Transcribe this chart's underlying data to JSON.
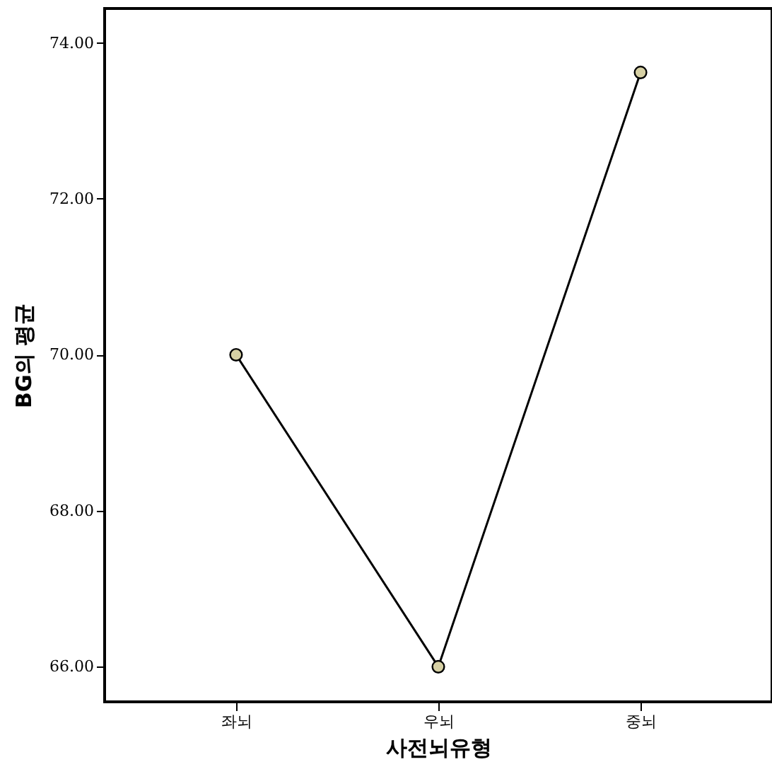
{
  "chart_data": {
    "type": "line",
    "xlabel": "사전뇌유형",
    "ylabel": "BG의 평균",
    "categories": [
      "좌뇌",
      "우뇌",
      "중뇌"
    ],
    "series": [
      {
        "color": "#000000",
        "values": [
          70.0,
          66.0,
          73.62
        ]
      }
    ],
    "marker": "circle",
    "grid": false,
    "ylim": [
      65.55,
      74.44
    ],
    "yticks": [
      {
        "value": 66,
        "label": "66.00"
      },
      {
        "value": 68,
        "label": "68.00"
      },
      {
        "value": 70,
        "label": "70.00"
      },
      {
        "value": 72,
        "label": "72.00"
      },
      {
        "value": 74,
        "label": "74.00"
      }
    ]
  }
}
